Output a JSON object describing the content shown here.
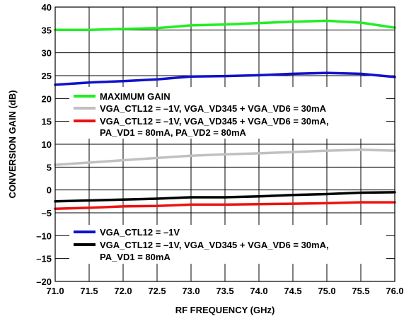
{
  "chart_data": {
    "type": "line",
    "xlabel": "RF FREQUENCY (GHz)",
    "ylabel": "CONVERSION GAIN (dB)",
    "xlim": [
      71.0,
      76.0
    ],
    "ylim": [
      -20,
      40
    ],
    "x_ticks": [
      "71.0",
      "71.5",
      "72.0",
      "72.5",
      "73.0",
      "73.5",
      "74.0",
      "74.5",
      "75.0",
      "75.5",
      "76.0"
    ],
    "y_ticks": [
      "40",
      "35",
      "30",
      "25",
      "20",
      "15",
      "10",
      "5",
      "0",
      "–5",
      "–10",
      "–15",
      "–20"
    ],
    "grid": true,
    "series": [
      {
        "name": "MAXIMUM GAIN",
        "color": "#22ee22",
        "x": [
          71.0,
          71.5,
          72.0,
          72.5,
          73.0,
          73.5,
          74.0,
          74.5,
          75.0,
          75.5,
          76.0
        ],
        "values": [
          35.0,
          35.0,
          35.2,
          35.4,
          36.0,
          36.2,
          36.5,
          36.8,
          37.0,
          36.6,
          35.5
        ]
      },
      {
        "name": "VGA_CTL12 = –1V, VGA_VD345 + VGA_VD6 = 30mA",
        "color": "#c0c0c0",
        "x": [
          71.0,
          71.5,
          72.0,
          72.5,
          73.0,
          73.5,
          74.0,
          74.5,
          75.0,
          75.5,
          76.0
        ],
        "values": [
          5.5,
          6.0,
          6.5,
          7.0,
          7.5,
          7.8,
          8.0,
          8.3,
          8.6,
          8.8,
          8.6
        ]
      },
      {
        "name_lines": [
          "VGA_CTL12 = –1V, VGA_VD345 + VGA_VD6 = 30mA,",
          "PA_VD1 = 80mA, PA_VD2 = 80mA"
        ],
        "color": "#ee1111",
        "x": [
          71.0,
          71.5,
          72.0,
          72.5,
          73.0,
          73.5,
          74.0,
          74.5,
          75.0,
          75.5,
          76.0
        ],
        "values": [
          -4.1,
          -3.9,
          -3.6,
          -3.5,
          -3.2,
          -3.2,
          -3.1,
          -3.0,
          -2.9,
          -2.7,
          -2.7
        ]
      },
      {
        "name": "VGA_CTL12 = –1V",
        "color": "#1111cc",
        "x": [
          71.0,
          71.5,
          72.0,
          72.5,
          73.0,
          73.5,
          74.0,
          74.5,
          75.0,
          75.5,
          76.0
        ],
        "values": [
          23.0,
          23.5,
          23.8,
          24.2,
          24.8,
          24.9,
          25.1,
          25.4,
          25.6,
          25.4,
          24.7
        ]
      },
      {
        "name_lines": [
          "VGA_CTL12 = –1V, VGA_VD345 + VGA_VD6 = 30mA,",
          "PA_VD1 = 80mA"
        ],
        "color": "#000000",
        "x": [
          71.0,
          71.5,
          72.0,
          72.5,
          73.0,
          73.5,
          74.0,
          74.5,
          75.0,
          75.5,
          76.0
        ],
        "values": [
          -2.5,
          -2.3,
          -2.1,
          -1.9,
          -1.6,
          -1.6,
          -1.4,
          -1.1,
          -0.9,
          -0.6,
          -0.5
        ]
      }
    ],
    "legends": [
      {
        "placement": "middle-left",
        "entries": [
          0,
          1,
          2
        ]
      },
      {
        "placement": "bottom-left",
        "entries": [
          3,
          4
        ]
      }
    ]
  }
}
